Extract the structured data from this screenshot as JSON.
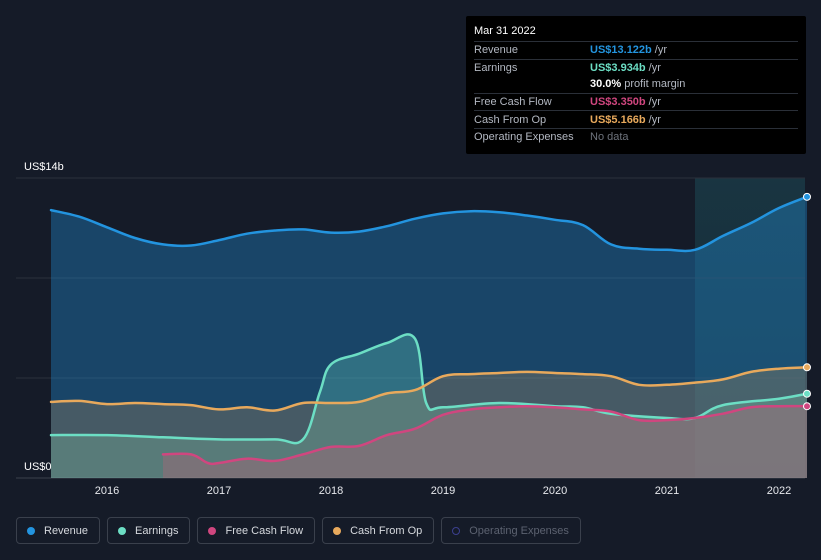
{
  "tooltip": {
    "date": "Mar 31 2022",
    "rows": [
      {
        "label": "Revenue",
        "value": "US$13.122b",
        "unit": "/yr",
        "color": "#2394df"
      },
      {
        "label": "Earnings",
        "value": "US$3.934b",
        "unit": "/yr",
        "color": "#6cdec4"
      },
      {
        "label": "",
        "value": "30.0%",
        "unit": "profit margin",
        "color": "#ffffff"
      },
      {
        "label": "Free Cash Flow",
        "value": "US$3.350b",
        "unit": "/yr",
        "color": "#d0467f"
      },
      {
        "label": "Cash From Op",
        "value": "US$5.166b",
        "unit": "/yr",
        "color": "#e8a95c"
      },
      {
        "label": "Operating Expenses",
        "value": "No data",
        "unit": "",
        "color": "#6e737c"
      }
    ]
  },
  "legend": [
    {
      "label": "Revenue",
      "color": "#2394df",
      "active": true
    },
    {
      "label": "Earnings",
      "color": "#6cdec4",
      "active": true
    },
    {
      "label": "Free Cash Flow",
      "color": "#d0467f",
      "active": true
    },
    {
      "label": "Cash From Op",
      "color": "#e8a95c",
      "active": true
    },
    {
      "label": "Operating Expenses",
      "color": "#3b3f8f",
      "active": false
    }
  ],
  "chart_data": {
    "type": "area",
    "ylabel_top": "US$14b",
    "ylabel_bottom": "US$0",
    "ylim": [
      0,
      14
    ],
    "xlim": [
      2015.45,
      2022.25
    ],
    "highlight_start": 2021.25,
    "x_ticks": [
      {
        "label": "2016",
        "value": 2016
      },
      {
        "label": "2017",
        "value": 2017
      },
      {
        "label": "2018",
        "value": 2018
      },
      {
        "label": "2019",
        "value": 2019
      },
      {
        "label": "2020",
        "value": 2020
      },
      {
        "label": "2021",
        "value": 2021
      },
      {
        "label": "2022",
        "value": 2022
      }
    ],
    "series": [
      {
        "name": "Revenue",
        "color": "#2394df",
        "x": [
          2015.5,
          2015.75,
          2016.0,
          2016.25,
          2016.5,
          2016.75,
          2017.0,
          2017.25,
          2017.5,
          2017.75,
          2018.0,
          2018.25,
          2018.5,
          2018.75,
          2019.0,
          2019.25,
          2019.5,
          2019.75,
          2020.0,
          2020.25,
          2020.5,
          2020.75,
          2021.0,
          2021.25,
          2021.5,
          2021.75,
          2022.0,
          2022.25
        ],
        "values": [
          12.5,
          12.2,
          11.7,
          11.2,
          10.9,
          10.85,
          11.1,
          11.4,
          11.55,
          11.6,
          11.45,
          11.5,
          11.75,
          12.1,
          12.35,
          12.45,
          12.4,
          12.25,
          12.05,
          11.8,
          10.9,
          10.7,
          10.65,
          10.65,
          11.3,
          11.9,
          12.6,
          13.122
        ]
      },
      {
        "name": "Earnings",
        "color": "#6cdec4",
        "x": [
          2015.5,
          2016.0,
          2016.5,
          2017.0,
          2017.5,
          2017.75,
          2017.9,
          2018.0,
          2018.25,
          2018.5,
          2018.75,
          2018.85,
          2019.0,
          2019.5,
          2020.0,
          2020.25,
          2020.5,
          2021.0,
          2021.25,
          2021.5,
          2022.0,
          2022.25
        ],
        "values": [
          2.0,
          2.0,
          1.9,
          1.8,
          1.8,
          1.8,
          4.0,
          5.3,
          5.8,
          6.3,
          6.5,
          3.5,
          3.3,
          3.5,
          3.35,
          3.3,
          3.0,
          2.8,
          2.8,
          3.4,
          3.7,
          3.934
        ]
      },
      {
        "name": "Free Cash Flow",
        "color": "#d0467f",
        "x": [
          2016.5,
          2016.75,
          2016.9,
          2017.0,
          2017.25,
          2017.5,
          2017.75,
          2018.0,
          2018.25,
          2018.5,
          2018.75,
          2019.0,
          2019.25,
          2019.5,
          2019.75,
          2020.0,
          2020.25,
          2020.5,
          2020.75,
          2021.0,
          2021.25,
          2021.5,
          2021.75,
          2022.0,
          2022.25
        ],
        "values": [
          1.1,
          1.1,
          0.7,
          0.7,
          0.9,
          0.8,
          1.1,
          1.45,
          1.5,
          2.0,
          2.3,
          2.95,
          3.2,
          3.3,
          3.35,
          3.3,
          3.2,
          3.1,
          2.7,
          2.7,
          2.8,
          3.0,
          3.3,
          3.35,
          3.35
        ]
      },
      {
        "name": "Cash From Op",
        "color": "#e8a95c",
        "x": [
          2015.5,
          2015.75,
          2016.0,
          2016.25,
          2016.5,
          2016.75,
          2017.0,
          2017.25,
          2017.5,
          2017.75,
          2018.0,
          2018.25,
          2018.5,
          2018.75,
          2019.0,
          2019.25,
          2019.5,
          2019.75,
          2020.0,
          2020.25,
          2020.5,
          2020.75,
          2021.0,
          2021.25,
          2021.5,
          2021.75,
          2022.0,
          2022.25
        ],
        "values": [
          3.55,
          3.6,
          3.45,
          3.5,
          3.45,
          3.4,
          3.2,
          3.3,
          3.15,
          3.5,
          3.5,
          3.55,
          3.95,
          4.1,
          4.75,
          4.85,
          4.9,
          4.95,
          4.9,
          4.85,
          4.75,
          4.35,
          4.35,
          4.45,
          4.6,
          4.95,
          5.1,
          5.166
        ]
      }
    ]
  }
}
